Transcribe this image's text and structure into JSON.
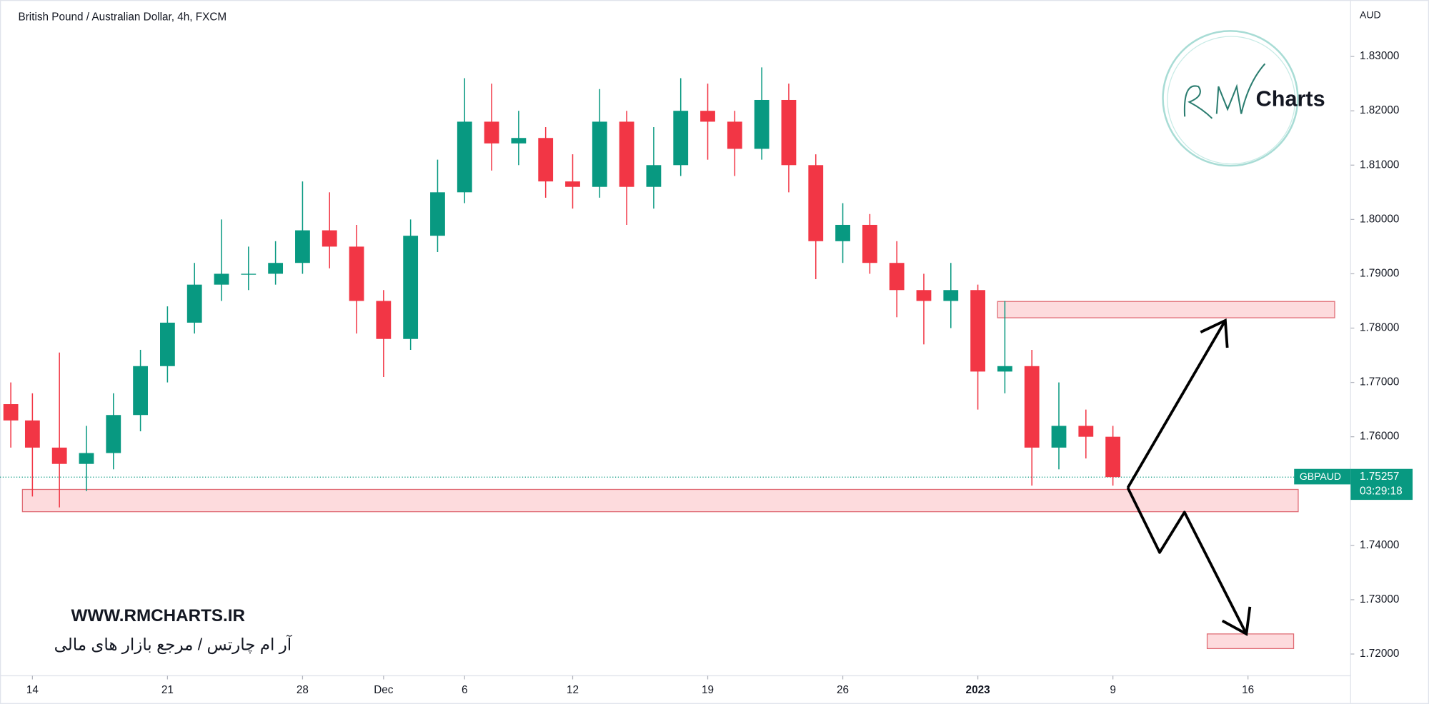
{
  "chart_data": {
    "type": "candlestick",
    "title": "British Pound / Australian Dollar, 4h, FXCM",
    "currency": "AUD",
    "up_color": "#089981",
    "down_color": "#f23645",
    "x": [
      -0.8,
      0,
      1,
      2,
      3,
      4,
      5,
      6,
      7,
      8,
      9,
      10,
      11,
      12,
      13,
      14,
      15,
      16,
      17,
      18,
      19,
      20,
      21,
      22,
      23,
      24,
      25,
      26,
      27,
      28,
      29,
      30,
      31,
      32,
      33,
      34,
      35,
      36,
      37,
      38,
      39,
      40
    ],
    "open": [
      1.766,
      1.763,
      1.758,
      1.755,
      1.757,
      1.764,
      1.773,
      1.781,
      1.788,
      1.79,
      1.79,
      1.792,
      1.798,
      1.795,
      1.785,
      1.778,
      1.797,
      1.805,
      1.818,
      1.814,
      1.815,
      1.807,
      1.806,
      1.818,
      1.806,
      1.81,
      1.82,
      1.818,
      1.813,
      1.822,
      1.81,
      1.796,
      1.799,
      1.792,
      1.787,
      1.785,
      1.787,
      1.772,
      1.773,
      1.758,
      1.762,
      1.76
    ],
    "high": [
      1.77,
      1.768,
      1.7755,
      1.762,
      1.768,
      1.776,
      1.784,
      1.792,
      1.8,
      1.795,
      1.796,
      1.807,
      1.805,
      1.799,
      1.787,
      1.8,
      1.811,
      1.826,
      1.825,
      1.82,
      1.817,
      1.812,
      1.824,
      1.82,
      1.817,
      1.826,
      1.825,
      1.82,
      1.828,
      1.825,
      1.812,
      1.803,
      1.801,
      1.796,
      1.79,
      1.792,
      1.788,
      1.785,
      1.776,
      1.77,
      1.765,
      1.762
    ],
    "low": [
      1.758,
      1.749,
      1.747,
      1.75,
      1.754,
      1.761,
      1.77,
      1.779,
      1.785,
      1.787,
      1.788,
      1.79,
      1.791,
      1.779,
      1.771,
      1.776,
      1.794,
      1.803,
      1.809,
      1.81,
      1.804,
      1.802,
      1.804,
      1.799,
      1.802,
      1.808,
      1.811,
      1.808,
      1.811,
      1.805,
      1.789,
      1.792,
      1.79,
      1.782,
      1.777,
      1.78,
      1.765,
      1.768,
      1.751,
      1.754,
      1.756,
      1.751
    ],
    "close": [
      1.763,
      1.758,
      1.755,
      1.757,
      1.764,
      1.773,
      1.781,
      1.788,
      1.79,
      1.79,
      1.792,
      1.798,
      1.795,
      1.785,
      1.778,
      1.797,
      1.805,
      1.818,
      1.814,
      1.815,
      1.807,
      1.806,
      1.818,
      1.806,
      1.81,
      1.82,
      1.818,
      1.813,
      1.822,
      1.81,
      1.796,
      1.799,
      1.792,
      1.787,
      1.785,
      1.787,
      1.772,
      1.773,
      1.758,
      1.762,
      1.76,
      1.75257
    ],
    "xlim": [
      -1.2,
      48.8
    ],
    "ylim": [
      1.716,
      1.8404
    ],
    "xticks": [
      {
        "value": 0,
        "label": "14"
      },
      {
        "value": 5,
        "label": "21"
      },
      {
        "value": 10,
        "label": "28"
      },
      {
        "value": 13,
        "label": "Dec"
      },
      {
        "value": 16,
        "label": "6"
      },
      {
        "value": 20,
        "label": "12"
      },
      {
        "value": 25,
        "label": "19"
      },
      {
        "value": 30,
        "label": "26"
      },
      {
        "value": 35,
        "label": "2023"
      },
      {
        "value": 40,
        "label": "9"
      },
      {
        "value": 45,
        "label": "16"
      }
    ],
    "yticks": [
      {
        "value": 1.72,
        "label": "1.72000"
      },
      {
        "value": 1.73,
        "label": "1.73000"
      },
      {
        "value": 1.74,
        "label": "1.74000"
      },
      {
        "value": 1.75,
        "label": "1.75000"
      },
      {
        "value": 1.76,
        "label": "1.76000"
      },
      {
        "value": 1.77,
        "label": "1.77000"
      },
      {
        "value": 1.78,
        "label": "1.78000"
      },
      {
        "value": 1.79,
        "label": "1.79000"
      },
      {
        "value": 1.8,
        "label": "1.80000"
      },
      {
        "value": 1.81,
        "label": "1.81000"
      },
      {
        "value": 1.82,
        "label": "1.82000"
      },
      {
        "value": 1.83,
        "label": "1.83000"
      }
    ],
    "last_price": {
      "symbol": "GBPAUD",
      "value": 1.75257,
      "countdown": "03:29:18",
      "color": "#089981"
    },
    "zones": [
      {
        "xlim": [
          -0.37,
          46.86
        ],
        "ylim": [
          1.7462,
          1.7503
        ]
      },
      {
        "xlim": [
          35.73,
          48.21
        ],
        "ylim": [
          1.7819,
          1.7849
        ]
      },
      {
        "xlim": [
          43.49,
          46.69
        ],
        "ylim": [
          1.721,
          1.7237
        ]
      }
    ],
    "arrows": [
      {
        "x": [
          40.55,
          44.16
        ],
        "y": [
          1.7506,
          1.7814
        ]
      },
      {
        "x": [
          40.55,
          41.73,
          42.65,
          44.94
        ],
        "y": [
          1.7506,
          1.7387,
          1.7461,
          1.7237
        ]
      }
    ],
    "watermark": {
      "url": "WWW.RMCHARTS.IR",
      "tagline": "آر ام چارتس / مرجع بازار های مالی"
    },
    "logo": "Charts"
  }
}
